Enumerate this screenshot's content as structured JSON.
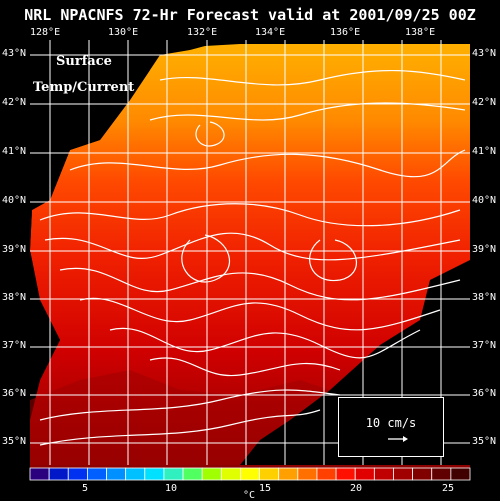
{
  "title": "NRL NPACNFS 72-Hr Forecast valid at 2001/09/25 00Z",
  "subtitle_lines": [
    "Surface",
    "Temp/Current"
  ],
  "lon_labels": [
    "128°E",
    "130°E",
    "132°E",
    "134°E",
    "136°E",
    "138°E"
  ],
  "lat_labels": [
    "43°N",
    "42°N",
    "41°N",
    "40°N",
    "39°N",
    "38°N",
    "37°N",
    "36°N",
    "35°N"
  ],
  "legend": {
    "scale_text": "10 cm/s"
  },
  "colorbar": {
    "tick_labels": [
      "5",
      "10",
      "15",
      "20",
      "25"
    ],
    "unit": "°C",
    "colors": [
      "#2a007f",
      "#0018c8",
      "#0030f0",
      "#0060ff",
      "#0090ff",
      "#00c0ff",
      "#00e0ff",
      "#30f0c0",
      "#50ff60",
      "#a0ff00",
      "#e0ff00",
      "#ffff00",
      "#ffd000",
      "#ffa000",
      "#ff7000",
      "#ff4000",
      "#ff1000",
      "#e00000",
      "#c00000",
      "#a00000",
      "#800000",
      "#600000",
      "#400000"
    ]
  },
  "map_colors": {
    "north": "#ff9a00",
    "mid": "#ff3a00",
    "south": "#d00000",
    "far_south": "#8a0000",
    "land": "#000000"
  }
}
